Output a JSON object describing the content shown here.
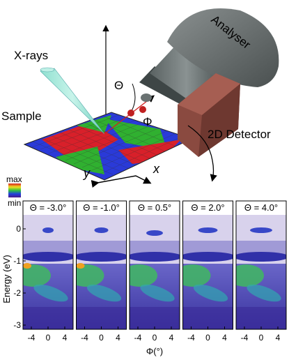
{
  "schematic": {
    "xray_label": "X-rays",
    "sample_label": "Sample",
    "theta_label": "Θ",
    "phi_label": "Φ",
    "analyser_label": "Analyser",
    "detector_label": "2D Detector",
    "y_axis_label": "y",
    "x_axis_label": "x"
  },
  "colorbar": {
    "max_label": "max",
    "min_label": "min"
  },
  "panels": [
    {
      "title": "Θ = -3.0°"
    },
    {
      "title": "Θ = -1.0°"
    },
    {
      "title": "Θ = 0.5°"
    },
    {
      "title": "Θ = 2.0°"
    },
    {
      "title": "Θ = 4.0°"
    }
  ],
  "energy_axis": {
    "label": "Energy (eV)",
    "ticks": [
      "0",
      "-1",
      "-2",
      "-3"
    ]
  },
  "angle_axis": {
    "label": "Φ(°)",
    "ticks": [
      "-4",
      "0",
      "4"
    ]
  }
}
